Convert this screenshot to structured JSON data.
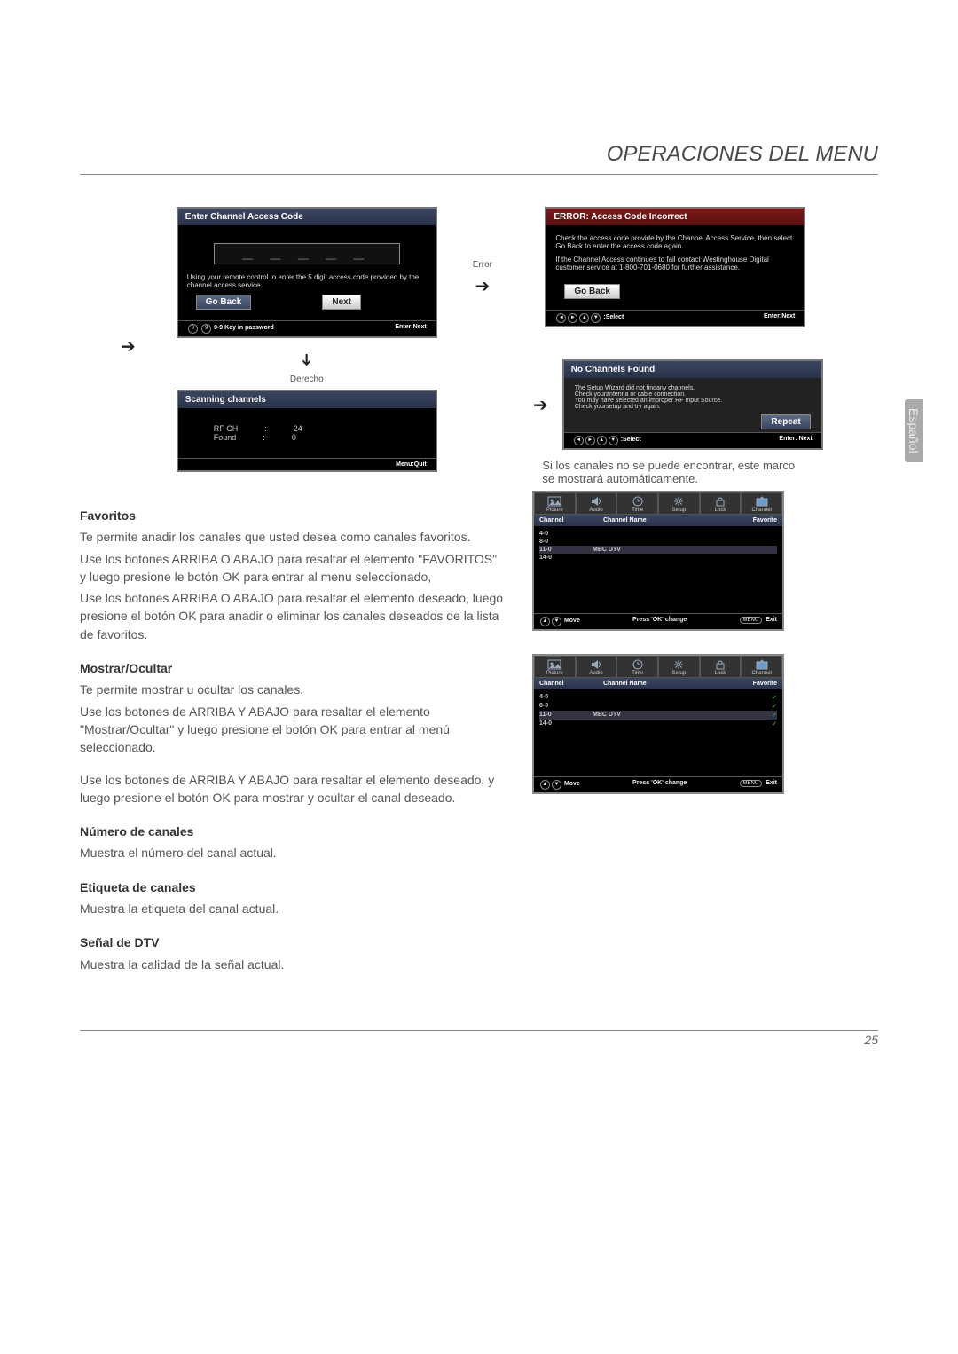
{
  "page": {
    "title": "OPERACIONES DEL MENU",
    "side_tab": "Español",
    "page_number": "25"
  },
  "panel_access": {
    "header": "Enter Channel Access Code",
    "hint": "Using your remote control to enter the 5 digit access code provided by the channel access service.",
    "btn_back": "Go Back",
    "btn_next": "Next",
    "foot_left": "0-9 Key in password",
    "foot_right": "Enter:Next"
  },
  "label_error": "Error",
  "label_down": "Derecho",
  "panel_error": {
    "header": "ERROR: Access Code Incorrect",
    "line1": "Check the access code provide by the Channel Access Service, then select Go Back to enter the access code again.",
    "line2": "If the Channel Access continues to fail contact Westinghouse Digital customer service at 1-800-701-0680 for further assistance.",
    "btn_back": "Go Back",
    "foot_left": ":Select",
    "foot_right": "Enter:Next"
  },
  "panel_scan": {
    "header": "Scanning channels",
    "row1_l": "RF CH",
    "row1_r": "24",
    "row2_l": "Found",
    "row2_r": "0",
    "foot_right": "Menu:Quit"
  },
  "panel_noch": {
    "header": "No Channels Found",
    "l1": "The Setup Wizard did not findany channels.",
    "l2": "Check yourantenna or cable connection.",
    "l3": "You may have selected an improper RF Input Source.",
    "l4": "Check yoursetup and try again.",
    "btn": "Repeat",
    "foot_left": ":Select",
    "foot_right": "Enter: Next"
  },
  "caption_noch": "Si los canales no se puede encontrar, este marco se mostrará automáticamente.",
  "sections": {
    "fav_h": "Favoritos",
    "fav_p1": "Te permite anadir los canales que usted desea como canales favoritos.",
    "fav_p2": "Use los botones ARRIBA O ABAJO para resaltar el elemento \"FAVORITOS\" y luego presione le botón OK para entrar al menu seleccionado,",
    "fav_p3": "Use los botones ARRIBA O ABAJO para resaltar el elemento deseado, luego presione el botón OK para anadir o eliminar los canales deseados de la lista de favoritos.",
    "show_h": "Mostrar/Ocultar",
    "show_p1": "Te permite mostrar u ocultar los canales.",
    "show_p2": "Use los botones de ARRIBA Y ABAJO para resaltar el elemento \"Mostrar/Ocultar\" y luego presione el botón OK para entrar al menú seleccionado.",
    "show_p3": "Use los botones de ARRIBA Y ABAJO para resaltar el elemento deseado, y luego presione el botón OK para mostrar y ocultar el canal deseado.",
    "num_h": "Número de canales",
    "num_p": "Muestra el número del canal actual.",
    "etq_h": "Etiqueta de canales",
    "etq_p": "Muestra la etiqueta del canal actual.",
    "dtv_h": "Señal de DTV",
    "dtv_p": "Muestra la calidad de la señal actual."
  },
  "fav_tabs": [
    "Picture",
    "Audio",
    "Time",
    "Setup",
    "Lock",
    "Channel"
  ],
  "fav_cols": {
    "c1": "Channel",
    "c2": "Channel Name",
    "c3": "Favorite"
  },
  "fav_rows1": [
    {
      "ch": "4-0",
      "name": "",
      "mark": ""
    },
    {
      "ch": "8-0",
      "name": "",
      "mark": ""
    },
    {
      "ch": "11-0",
      "name": "MBC DTV",
      "mark": ""
    },
    {
      "ch": "14-0",
      "name": "",
      "mark": ""
    }
  ],
  "fav_rows2": [
    {
      "ch": "4-0",
      "name": "",
      "mark": "✓"
    },
    {
      "ch": "8-0",
      "name": "",
      "mark": "✓"
    },
    {
      "ch": "11-0",
      "name": "MBC DTV",
      "mark": "✓"
    },
    {
      "ch": "14-0",
      "name": "",
      "mark": "✓"
    }
  ],
  "fav_footer": {
    "move": "Move",
    "ok": "Press 'OK' change",
    "exit": "Exit",
    "menu": "MENU"
  }
}
